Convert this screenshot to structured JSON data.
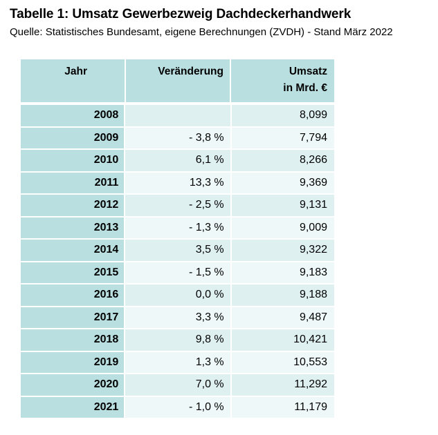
{
  "header": {
    "title": "Tabelle 1: Umsatz Gewerbezweig Dachdeckerhandwerk",
    "subtitle": "Quelle: Statistisches Bundesamt, eigene Berechnungen (ZVDH) - Stand März 2022"
  },
  "table": {
    "columns": [
      "Jahr",
      "Veränderung",
      "Umsatz",
      "in Mrd. €"
    ],
    "rows": [
      {
        "year": "2008",
        "change": "",
        "revenue": "8,099"
      },
      {
        "year": "2009",
        "change": "- 3,8 %",
        "revenue": "7,794"
      },
      {
        "year": "2010",
        "change": "6,1 %",
        "revenue": "8,266"
      },
      {
        "year": "2011",
        "change": "13,3 %",
        "revenue": "9,369"
      },
      {
        "year": "2012",
        "change": "- 2,5 %",
        "revenue": "9,131"
      },
      {
        "year": "2013",
        "change": "- 1,3 %",
        "revenue": "9,009"
      },
      {
        "year": "2014",
        "change": "3,5 %",
        "revenue": "9,322"
      },
      {
        "year": "2015",
        "change": "- 1,5 %",
        "revenue": "9,183"
      },
      {
        "year": "2016",
        "change": "0,0 %",
        "revenue": "9,188"
      },
      {
        "year": "2017",
        "change": "3,3 %",
        "revenue": "9,487"
      },
      {
        "year": "2018",
        "change": "9,8 %",
        "revenue": "10,421"
      },
      {
        "year": "2019",
        "change": "1,3 %",
        "revenue": "10,553"
      },
      {
        "year": "2020",
        "change": "7,0 %",
        "revenue": "11,292"
      },
      {
        "year": "2021",
        "change": "- 1,0 %",
        "revenue": "11,179"
      }
    ]
  },
  "colors": {
    "header_bg": "#b9dfe1",
    "row_dark": "#dff0f1",
    "row_light": "#eef8f8"
  }
}
